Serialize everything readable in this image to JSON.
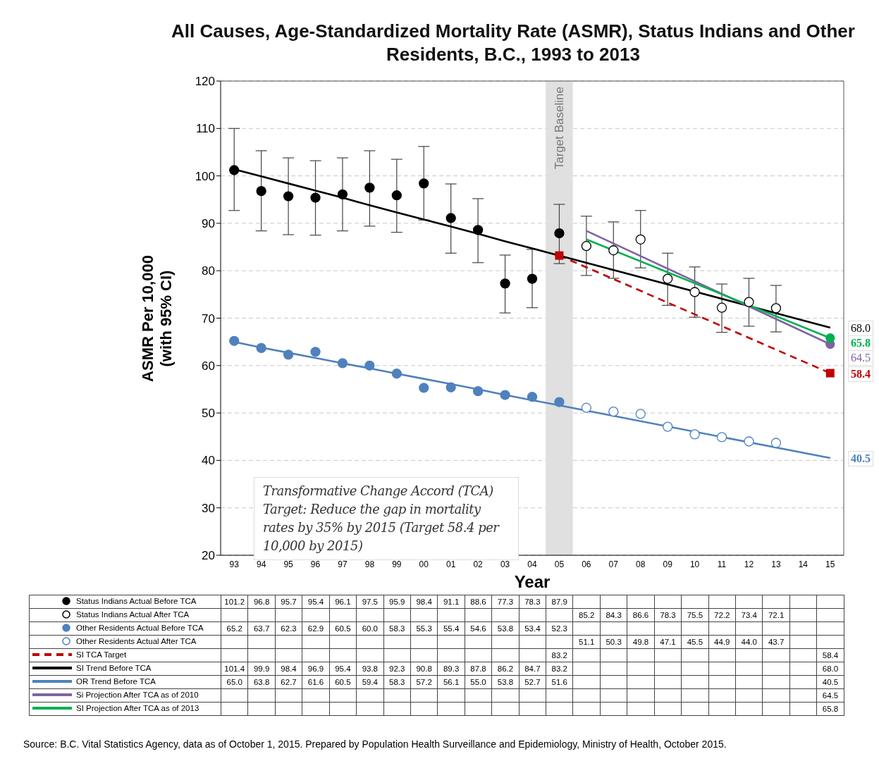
{
  "chart_data": {
    "type": "line",
    "title": "All Causes, Age-Standardized Mortality Rate (ASMR), Status Indians and Other Residents, B.C., 1993 to 2013",
    "xlabel": "Year",
    "ylabel": "ASMR Per 10,000\n(with 95% CI)",
    "categories": [
      "93",
      "94",
      "95",
      "96",
      "97",
      "98",
      "99",
      "00",
      "01",
      "02",
      "03",
      "04",
      "05",
      "06",
      "07",
      "08",
      "09",
      "10",
      "11",
      "12",
      "13",
      "14",
      "15"
    ],
    "ylim": [
      20,
      120
    ],
    "yticks": [
      20,
      30,
      40,
      50,
      60,
      70,
      80,
      90,
      100,
      110,
      120
    ],
    "grid": "y",
    "legend": "bottom",
    "series": [
      {
        "name": "Status Indians Actual Before TCA",
        "type": "scatter",
        "marker": "circle",
        "color": "#000000",
        "values": [
          101.2,
          96.8,
          95.7,
          95.4,
          96.1,
          97.5,
          95.9,
          98.4,
          91.1,
          88.6,
          77.3,
          78.3,
          87.9,
          null,
          null,
          null,
          null,
          null,
          null,
          null,
          null,
          null,
          null
        ],
        "errors": [
          [
            92.7,
            110.0
          ],
          [
            88.4,
            105.3
          ],
          [
            87.6,
            103.8
          ],
          [
            87.5,
            103.2
          ],
          [
            88.4,
            103.8
          ],
          [
            89.4,
            105.3
          ],
          [
            88.1,
            103.5
          ],
          [
            90.7,
            106.2
          ],
          [
            83.7,
            98.3
          ],
          [
            81.7,
            95.2
          ],
          [
            71.1,
            83.3
          ],
          [
            72.2,
            84.5
          ],
          [
            81.5,
            94.0
          ],
          null,
          null,
          null,
          null,
          null,
          null,
          null,
          null,
          null,
          null
        ],
        "value_labels": [
          "101.2",
          "96.8",
          "95.7",
          "95.4",
          "96.1",
          "97.5",
          "95.9",
          "98.4",
          "91.1",
          "88.6",
          "77.3",
          "78.3",
          "87.9",
          null,
          null,
          null,
          null,
          null,
          null,
          null,
          null,
          null,
          null
        ]
      },
      {
        "name": "Status Indians Actual After TCA",
        "type": "scatter",
        "marker": "circle",
        "color": "#000000",
        "values": [
          null,
          null,
          null,
          null,
          null,
          null,
          null,
          null,
          null,
          null,
          null,
          null,
          null,
          85.2,
          84.3,
          86.6,
          78.3,
          75.5,
          72.2,
          73.4,
          72.1,
          null,
          null
        ],
        "errors": [
          null,
          null,
          null,
          null,
          null,
          null,
          null,
          null,
          null,
          null,
          null,
          null,
          null,
          [
            79.0,
            91.5
          ],
          [
            78.4,
            90.3
          ],
          [
            80.6,
            92.7
          ],
          [
            72.7,
            83.7
          ],
          [
            70.2,
            80.8
          ],
          [
            67.0,
            77.2
          ],
          [
            68.3,
            78.4
          ],
          [
            67.1,
            76.9
          ],
          null,
          null
        ],
        "value_labels": [
          null,
          null,
          null,
          null,
          null,
          null,
          null,
          null,
          null,
          null,
          null,
          null,
          null,
          "85.2",
          "84.3",
          "86.6",
          "78.3",
          "75.5",
          "72.2",
          "73.4",
          "72.1",
          null,
          null
        ]
      },
      {
        "name": "Other Residents Actual Before TCA",
        "type": "scatter",
        "marker": "circle",
        "color": "#4f81bd",
        "values": [
          65.2,
          63.7,
          62.3,
          62.9,
          60.5,
          60.0,
          58.3,
          55.3,
          55.4,
          54.6,
          53.8,
          53.4,
          52.3,
          null,
          null,
          null,
          null,
          null,
          null,
          null,
          null,
          null,
          null
        ],
        "value_labels": [
          "65.2",
          "63.7",
          "62.3",
          "62.9",
          "60.5",
          "60.0",
          "58.3",
          "55.3",
          "55.4",
          "54.6",
          "53.8",
          "53.4",
          "52.3",
          null,
          null,
          null,
          null,
          null,
          null,
          null,
          null,
          null,
          null
        ]
      },
      {
        "name": "Other Residents Actual After TCA",
        "type": "scatter",
        "marker": "circle",
        "color": "#4f81bd",
        "values": [
          null,
          null,
          null,
          null,
          null,
          null,
          null,
          null,
          null,
          null,
          null,
          null,
          null,
          51.1,
          50.3,
          49.8,
          47.1,
          45.5,
          44.9,
          44.0,
          43.7,
          null,
          null
        ],
        "value_labels": [
          null,
          null,
          null,
          null,
          null,
          null,
          null,
          null,
          null,
          null,
          null,
          null,
          null,
          "51.1",
          "50.3",
          "49.8",
          "47.1",
          "45.5",
          "44.9",
          "44.0",
          "43.7",
          null,
          null
        ]
      },
      {
        "name": "SI TCA Target",
        "marker": "square",
        "line_style": "dashed",
        "color": "#c00000",
        "values": [
          null,
          null,
          null,
          null,
          null,
          null,
          null,
          null,
          null,
          null,
          null,
          null,
          83.2,
          null,
          null,
          null,
          null,
          null,
          null,
          null,
          null,
          null,
          58.4
        ],
        "value_labels": [
          null,
          null,
          null,
          null,
          null,
          null,
          null,
          null,
          null,
          null,
          null,
          null,
          "83.2",
          null,
          null,
          null,
          null,
          null,
          null,
          null,
          null,
          null,
          "58.4"
        ]
      },
      {
        "name": "SI Trend Before TCA",
        "marker": "none",
        "line_style": "solid",
        "color": "#000000",
        "values": [
          101.4,
          99.9,
          98.4,
          96.9,
          95.4,
          93.8,
          92.3,
          90.8,
          89.3,
          87.8,
          86.2,
          84.7,
          83.2,
          null,
          null,
          null,
          null,
          null,
          null,
          null,
          null,
          null,
          68.0
        ],
        "value_labels": [
          "101.4",
          "99.9",
          "98.4",
          "96.9",
          "95.4",
          "93.8",
          "92.3",
          "90.8",
          "89.3",
          "87.8",
          "86.2",
          "84.7",
          "83.2",
          null,
          null,
          null,
          null,
          null,
          null,
          null,
          null,
          null,
          "68.0"
        ]
      },
      {
        "name": "OR Trend Before TCA",
        "marker": "none",
        "line_style": "solid",
        "color": "#4f81bd",
        "values": [
          65.0,
          63.8,
          62.7,
          61.6,
          60.5,
          59.4,
          58.3,
          57.2,
          56.1,
          55.0,
          53.8,
          52.7,
          51.6,
          null,
          null,
          null,
          null,
          null,
          null,
          null,
          null,
          null,
          40.5
        ],
        "value_labels": [
          "65.0",
          "63.8",
          "62.7",
          "61.6",
          "60.5",
          "59.4",
          "58.3",
          "57.2",
          "56.1",
          "55.0",
          "53.8",
          "52.7",
          "51.6",
          null,
          null,
          null,
          null,
          null,
          null,
          null,
          null,
          null,
          "40.5"
        ]
      },
      {
        "name": "Si Projection After TCA as of 2010",
        "marker": "circle",
        "line_style": "solid",
        "color": "#8064a2",
        "values": [
          null,
          null,
          null,
          null,
          null,
          null,
          null,
          null,
          null,
          null,
          null,
          null,
          null,
          88.4,
          null,
          null,
          null,
          null,
          null,
          null,
          null,
          null,
          64.5
        ],
        "value_labels": [
          null,
          null,
          null,
          null,
          null,
          null,
          null,
          null,
          null,
          null,
          null,
          null,
          null,
          null,
          null,
          null,
          null,
          null,
          null,
          null,
          null,
          null,
          "64.5"
        ]
      },
      {
        "name": "SI Projection After TCA as of 2013",
        "marker": "circle",
        "line_style": "solid",
        "color": "#00b050",
        "values": [
          null,
          null,
          null,
          null,
          null,
          null,
          null,
          null,
          null,
          null,
          null,
          null,
          null,
          86.6,
          null,
          null,
          null,
          null,
          null,
          null,
          null,
          null,
          65.8
        ],
        "value_labels": [
          null,
          null,
          null,
          null,
          null,
          null,
          null,
          null,
          null,
          null,
          null,
          null,
          null,
          null,
          null,
          null,
          null,
          null,
          null,
          null,
          null,
          null,
          "65.8"
        ]
      }
    ],
    "bands": [
      {
        "axis": "x",
        "from": "05",
        "to": "05",
        "label": "Target Baseline",
        "color": "#e0e0e0"
      }
    ],
    "annotations": [
      "Transformative Change Accord (TCA) Target: Reduce the gap in mortality rates by 35% by 2015 (Target 58.4 per 10,000 by 2015)",
      "Source:  B.C. Vital Statistics Agency, data as of October 1, 2015.  Prepared by Population Health Surveillance and Epidemiology, Ministry of Health, October 2015."
    ]
  }
}
